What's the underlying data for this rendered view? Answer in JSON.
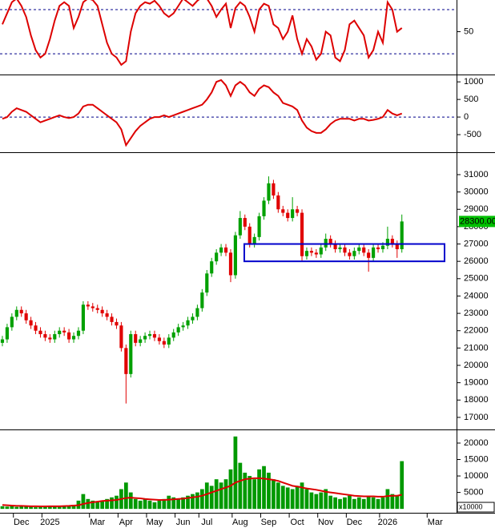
{
  "chart_data": [
    {
      "type": "line",
      "color": "#dd0000",
      "ylim": [
        -7,
        93
      ],
      "yticks": [
        50
      ],
      "levels": [
        80,
        20
      ],
      "values": [
        60,
        75,
        90,
        95,
        85,
        70,
        45,
        25,
        15,
        20,
        40,
        65,
        85,
        90,
        85,
        55,
        70,
        90,
        95,
        93,
        85,
        60,
        35,
        20,
        15,
        5,
        10,
        50,
        75,
        85,
        90,
        88,
        92,
        85,
        75,
        70,
        75,
        85,
        95,
        90,
        85,
        92,
        97,
        95,
        85,
        70,
        80,
        88,
        55,
        82,
        90,
        85,
        70,
        50,
        80,
        88,
        85,
        60,
        55,
        40,
        50,
        72,
        40,
        20,
        40,
        30,
        12,
        20,
        50,
        45,
        15,
        10,
        25,
        60,
        65,
        55,
        45,
        15,
        25,
        50,
        35,
        90,
        80,
        50,
        55,
        null,
        null,
        null,
        null,
        null,
        null,
        null,
        null,
        null,
        null,
        null
      ]
    },
    {
      "type": "line",
      "color": "#dd0000",
      "ylim": [
        -977,
        1163
      ],
      "yticks": [
        1000,
        500,
        0,
        -500
      ],
      "levels": [
        0
      ],
      "values": [
        -50,
        0,
        150,
        250,
        200,
        150,
        50,
        -50,
        -150,
        -100,
        -50,
        0,
        50,
        0,
        -30,
        0,
        100,
        300,
        350,
        350,
        250,
        150,
        50,
        -50,
        -150,
        -350,
        -800,
        -600,
        -400,
        -250,
        -150,
        -50,
        0,
        0,
        50,
        0,
        50,
        100,
        150,
        200,
        250,
        300,
        350,
        500,
        700,
        1000,
        1050,
        900,
        600,
        900,
        1000,
        900,
        700,
        600,
        800,
        900,
        850,
        700,
        600,
        400,
        350,
        300,
        200,
        -100,
        -300,
        -400,
        -450,
        -450,
        -350,
        -200,
        -100,
        -50,
        -50,
        -50,
        -100,
        -50,
        -50,
        -100,
        -80,
        -50,
        0,
        200,
        100,
        50,
        100,
        null,
        null,
        null,
        null,
        null,
        null,
        null,
        null,
        null,
        null,
        null
      ]
    },
    {
      "type": "candlestick",
      "up_color": "#00a000",
      "down_color": "#e00000",
      "ylim": [
        16350,
        32200
      ],
      "yticks": [
        17000,
        18000,
        19000,
        20000,
        21000,
        22000,
        23000,
        24000,
        25000,
        26000,
        27000,
        28000,
        29000,
        30000,
        31000
      ],
      "range_box": [
        26000,
        27000
      ],
      "box_color": "#0000cc",
      "last": {
        "value": 28300,
        "label": "28300.00"
      },
      "open": [
        21300,
        21500,
        22200,
        22800,
        23200,
        23000,
        22600,
        22300,
        22000,
        21800,
        21600,
        21500,
        21800,
        22000,
        21900,
        21500,
        21700,
        22000,
        23500,
        23400,
        23300,
        23200,
        23000,
        22800,
        22500,
        22300,
        21000,
        19500,
        21800,
        21300,
        21500,
        21700,
        21800,
        21600,
        21400,
        21200,
        21600,
        21900,
        22200,
        22300,
        22600,
        22800,
        23300,
        24200,
        25300,
        26000,
        26500,
        26800,
        26500,
        25200,
        27500,
        28500,
        28000,
        27000,
        27400,
        28600,
        29500,
        30500,
        29800,
        29000,
        28800,
        28500,
        29000,
        28800,
        26300,
        26600,
        26500,
        26400,
        26800,
        27300,
        27000,
        26700,
        26800,
        26500,
        26300,
        26600,
        26800,
        26500,
        26200,
        26800,
        26700,
        26900,
        27300,
        27000,
        26700,
        null,
        null,
        null,
        null,
        null,
        null,
        null,
        null,
        null,
        null,
        null
      ],
      "high": [
        21700,
        22400,
        23000,
        23400,
        23400,
        23200,
        22800,
        22500,
        22200,
        22000,
        21800,
        22000,
        22200,
        22200,
        22100,
        21900,
        22200,
        23700,
        23700,
        23600,
        23500,
        23400,
        23200,
        23000,
        22700,
        22500,
        21200,
        22000,
        22000,
        21700,
        21900,
        22000,
        22000,
        21800,
        21600,
        21800,
        22100,
        22400,
        22500,
        22800,
        23000,
        23500,
        24400,
        25500,
        26200,
        26700,
        27000,
        27000,
        26700,
        27700,
        28900,
        28700,
        28200,
        27600,
        28800,
        29700,
        30900,
        30700,
        30000,
        29200,
        29000,
        29700,
        29200,
        29000,
        26800,
        26800,
        26700,
        27000,
        27600,
        27500,
        27200,
        27000,
        27000,
        26700,
        26800,
        27000,
        27000,
        26700,
        27000,
        27000,
        27100,
        28000,
        27500,
        27200,
        28700,
        null,
        null,
        null,
        null,
        null,
        null,
        null,
        null,
        null,
        null,
        null
      ],
      "low": [
        21100,
        21300,
        22000,
        22600,
        22800,
        22400,
        22100,
        21800,
        21600,
        21400,
        21300,
        21300,
        21600,
        21700,
        21300,
        21300,
        21500,
        21800,
        23200,
        23100,
        23000,
        22800,
        22600,
        22300,
        22100,
        20800,
        17800,
        19300,
        21100,
        21100,
        21300,
        21500,
        21400,
        21200,
        21000,
        21000,
        21400,
        21700,
        22000,
        22100,
        22400,
        22600,
        23100,
        24000,
        25100,
        25800,
        26300,
        26300,
        24800,
        25000,
        27300,
        27800,
        26800,
        26800,
        27200,
        28400,
        29300,
        29600,
        28800,
        28600,
        28300,
        28300,
        28600,
        26000,
        26100,
        26300,
        26200,
        26200,
        26600,
        26800,
        26500,
        26500,
        26300,
        26100,
        26100,
        26400,
        26300,
        25400,
        26000,
        26500,
        26500,
        26700,
        26800,
        26200,
        26500,
        null,
        null,
        null,
        null,
        null,
        null,
        null,
        null,
        null,
        null,
        null
      ],
      "close": [
        21500,
        22200,
        22800,
        23200,
        23000,
        22600,
        22300,
        22000,
        21800,
        21600,
        21500,
        21800,
        22000,
        21900,
        21500,
        21700,
        22000,
        23500,
        23400,
        23300,
        23200,
        23000,
        22800,
        22500,
        22300,
        21000,
        19500,
        21800,
        21300,
        21500,
        21700,
        21800,
        21600,
        21400,
        21200,
        21600,
        21900,
        22200,
        22300,
        22600,
        22800,
        23300,
        24200,
        25300,
        26000,
        26500,
        26800,
        26500,
        25200,
        27500,
        28500,
        28000,
        27000,
        27400,
        28600,
        29500,
        30500,
        29800,
        29000,
        28800,
        28500,
        29000,
        28800,
        26300,
        26600,
        26500,
        26400,
        26800,
        27300,
        27000,
        26700,
        26800,
        26500,
        26300,
        26600,
        26800,
        26500,
        26200,
        26800,
        26700,
        26900,
        27300,
        27000,
        26700,
        28300,
        null,
        null,
        null,
        null,
        null,
        null,
        null,
        null,
        null,
        null,
        null
      ]
    },
    {
      "type": "bar",
      "ylim": [
        -700,
        23650
      ],
      "yticks": [
        5000,
        10000,
        15000,
        20000
      ],
      "unit": "x10000",
      "categories": [
        null,
        null,
        null,
        null,
        "Dec",
        null,
        null,
        null,
        null,
        null,
        "2025",
        null,
        null,
        null,
        null,
        null,
        null,
        null,
        null,
        null,
        "Mar",
        null,
        null,
        null,
        null,
        null,
        "Apr",
        null,
        null,
        null,
        null,
        null,
        "May",
        null,
        null,
        null,
        null,
        null,
        "Jun",
        null,
        null,
        null,
        null,
        "Jul",
        null,
        null,
        null,
        null,
        null,
        null,
        "Aug",
        null,
        null,
        null,
        null,
        null,
        "Sep",
        null,
        null,
        null,
        null,
        null,
        "Oct",
        null,
        null,
        null,
        null,
        null,
        "Nov",
        null,
        null,
        null,
        null,
        null,
        "Dec",
        null,
        null,
        null,
        null,
        null,
        null,
        "2026",
        null,
        null,
        null,
        null,
        null,
        null,
        null,
        null,
        null,
        "Mar",
        null,
        null,
        null,
        null
      ],
      "series": [
        {
          "color": "#009900",
          "values": [
            800,
            700,
            900,
            600,
            800,
            700,
            600,
            500,
            700,
            800,
            900,
            700,
            600,
            800,
            1000,
            1200,
            2500,
            4500,
            3000,
            2500,
            2000,
            2500,
            3000,
            3500,
            4000,
            6000,
            8000,
            5000,
            3000,
            2500,
            3000,
            2500,
            2000,
            2500,
            3000,
            4000,
            3500,
            3000,
            3500,
            4000,
            4500,
            5000,
            6000,
            8000,
            7000,
            9000,
            8000,
            9000,
            12000,
            22000,
            14000,
            11000,
            10000,
            9000,
            12000,
            13000,
            11000,
            9000,
            8000,
            7000,
            6500,
            6000,
            7000,
            8000,
            6000,
            5000,
            4500,
            5000,
            6000,
            4000,
            3500,
            3000,
            3500,
            4000,
            3000,
            3500,
            3000,
            4000,
            3500,
            3000,
            3500,
            6000,
            4500,
            4000,
            14500,
            null,
            null,
            null,
            null,
            null,
            null,
            null,
            null,
            null,
            null,
            null
          ]
        },
        {
          "type": "line",
          "color": "#dd0000",
          "values": [
            1200,
            1100,
            1000,
            900,
            900,
            850,
            800,
            800,
            750,
            750,
            800,
            800,
            800,
            850,
            900,
            1000,
            1100,
            1500,
            1800,
            2000,
            2200,
            2400,
            2500,
            2600,
            2700,
            3000,
            3300,
            3400,
            3300,
            3200,
            3000,
            2900,
            2800,
            2700,
            2700,
            2800,
            2900,
            3000,
            3100,
            3300,
            3500,
            3700,
            4000,
            4500,
            5000,
            5500,
            6000,
            6500,
            7000,
            8000,
            8500,
            9000,
            9200,
            9300,
            9300,
            9200,
            9000,
            8800,
            8500,
            8000,
            7500,
            7000,
            6800,
            6500,
            6200,
            6000,
            5800,
            5500,
            5200,
            5000,
            4800,
            4600,
            4400,
            4200,
            4000,
            3900,
            3800,
            3800,
            3800,
            3700,
            3700,
            3900,
            4000,
            4000,
            4300,
            null,
            null,
            null,
            null,
            null,
            null,
            null,
            null,
            null,
            null,
            null
          ]
        }
      ]
    }
  ]
}
